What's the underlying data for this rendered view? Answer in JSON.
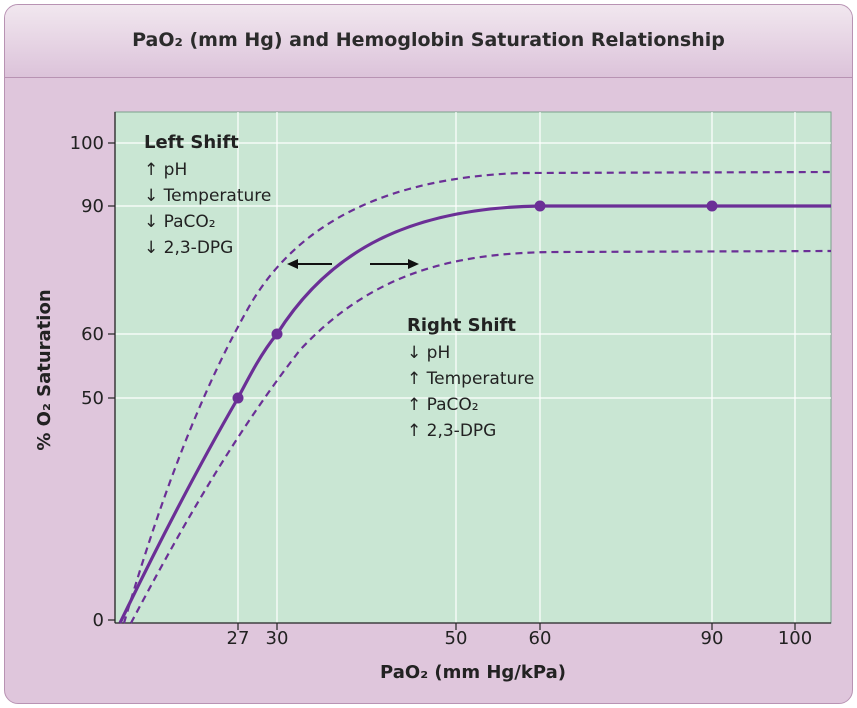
{
  "title": "PaO₂ (mm Hg) and Hemoglobin Saturation Relationship",
  "colors": {
    "panel_bg": "#dfc6dc",
    "plot_bg": "#c9e6d3",
    "curve": "#6b2f96",
    "gridline": "#ffffff"
  },
  "chart_data": {
    "type": "line",
    "xlabel": "PaO₂ (mm Hg/kPa)",
    "ylabel": "% O₂ Saturation",
    "x_ticks": [
      27,
      30,
      50,
      60,
      90,
      100
    ],
    "y_ticks": [
      0,
      50,
      60,
      90,
      100
    ],
    "grid": true,
    "series": [
      {
        "style": "solid",
        "points": [
          [
            27,
            50
          ],
          [
            30,
            60
          ],
          [
            60,
            90
          ],
          [
            90,
            90
          ]
        ]
      },
      {
        "style": "dashed",
        "points": []
      },
      {
        "style": "dashed",
        "points": []
      }
    ],
    "annotations": {
      "left_shift": {
        "title": "Left Shift",
        "items": [
          "↑ pH",
          "↓ Temperature",
          "↓ PaCO₂",
          "↓ 2,3-DPG"
        ]
      },
      "right_shift": {
        "title": "Right Shift",
        "items": [
          "↓ pH",
          "↑ Temperature",
          "↑ PaCO₂",
          "↑ 2,3-DPG"
        ]
      }
    }
  }
}
